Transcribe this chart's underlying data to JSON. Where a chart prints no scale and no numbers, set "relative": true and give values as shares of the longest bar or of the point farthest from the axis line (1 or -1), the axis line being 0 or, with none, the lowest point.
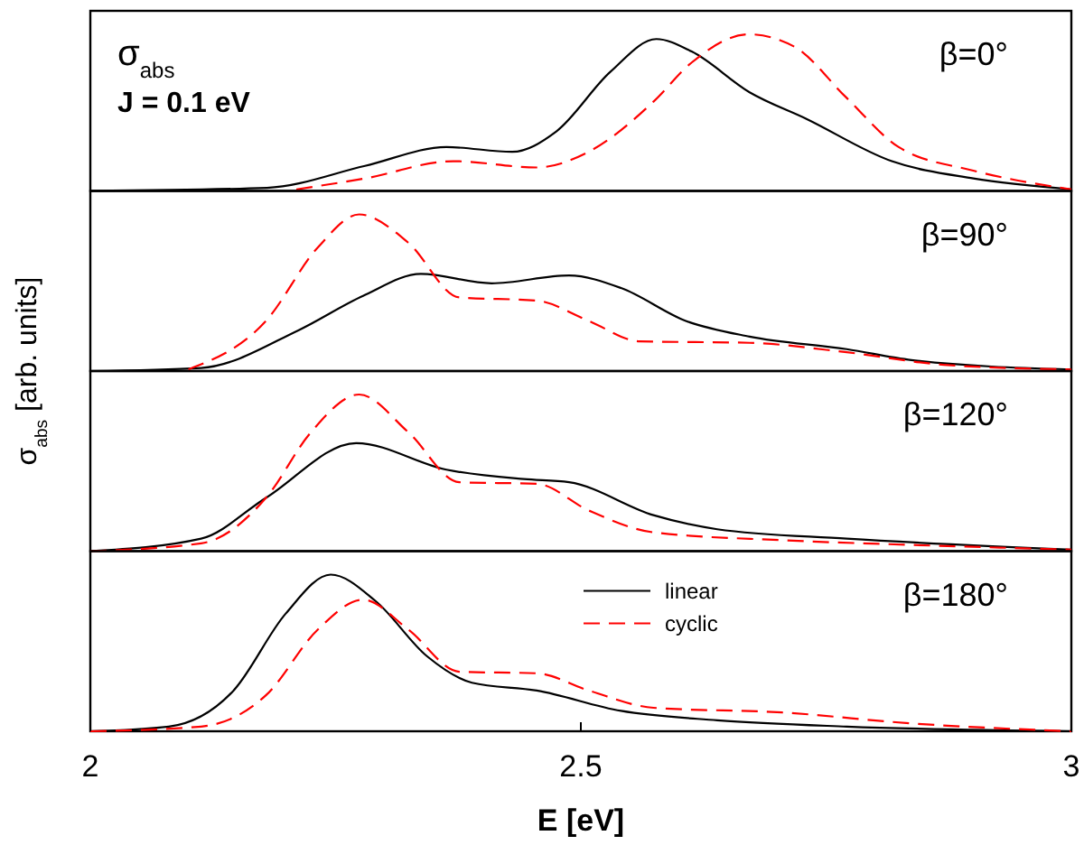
{
  "chart_data": [
    {
      "type": "line",
      "relative": true,
      "ylabel": "σ$_{abs}$ [arb. units]",
      "xlim": [
        2,
        3
      ],
      "tick_labels": false,
      "annotations": [
        "σ$_{abs}$",
        "J = 0.1 eV",
        "β=0°"
      ],
      "series": [
        {
          "color": "#000000",
          "line_style": "solid",
          "x": [
            2,
            2.18,
            2.28,
            2.363,
            2.43,
            2.475,
            2.53,
            2.577,
            2.613,
            2.672,
            2.73,
            2.817,
            2.9,
            3
          ],
          "values": [
            0,
            0.02,
            0.16,
            0.28,
            0.25,
            0.38,
            0.76,
            0.97,
            0.89,
            0.63,
            0.46,
            0.19,
            0.08,
            0.01
          ]
        },
        {
          "color": "#ff0000",
          "line_style": "dashed",
          "x": [
            2.21,
            2.28,
            2.37,
            2.455,
            2.508,
            2.574,
            2.613,
            2.671,
            2.718,
            2.77,
            2.824,
            2.9,
            3
          ],
          "values": [
            0.01,
            0.08,
            0.19,
            0.15,
            0.25,
            0.57,
            0.82,
            1,
            0.92,
            0.6,
            0.28,
            0.13,
            0.01
          ]
        }
      ]
    },
    {
      "type": "line",
      "relative": true,
      "xlim": [
        2,
        3
      ],
      "tick_labels": false,
      "annotations": [
        "β=90°"
      ],
      "series": [
        {
          "color": "#000000",
          "line_style": "solid",
          "x": [
            2,
            2.113,
            2.212,
            2.278,
            2.337,
            2.409,
            2.488,
            2.541,
            2.607,
            2.672,
            2.771,
            2.837,
            3
          ],
          "values": [
            0,
            0.02,
            0.26,
            0.48,
            0.62,
            0.56,
            0.61,
            0.53,
            0.32,
            0.22,
            0.14,
            0.07,
            0.01
          ]
        },
        {
          "color": "#ff0000",
          "line_style": "dashed",
          "x": [
            2.1,
            2.179,
            2.232,
            2.274,
            2.324,
            2.376,
            2.455,
            2.508,
            2.56,
            2.672,
            2.771,
            2.87,
            3
          ],
          "values": [
            0.01,
            0.32,
            0.79,
            1,
            0.82,
            0.47,
            0.45,
            0.32,
            0.19,
            0.18,
            0.12,
            0.04,
            0.01
          ]
        }
      ]
    },
    {
      "type": "line",
      "relative": true,
      "xlim": [
        2,
        3
      ],
      "tick_labels": false,
      "annotations": [
        "β=120°"
      ],
      "series": [
        {
          "color": "#000000",
          "line_style": "solid",
          "x": [
            2,
            2.113,
            2.179,
            2.271,
            2.363,
            2.442,
            2.488,
            2.574,
            2.639,
            2.771,
            3
          ],
          "values": [
            0,
            0.08,
            0.34,
            0.69,
            0.52,
            0.46,
            0.44,
            0.23,
            0.14,
            0.08,
            0.01
          ]
        },
        {
          "color": "#ff0000",
          "line_style": "dashed",
          "x": [
            2,
            2.113,
            2.179,
            2.225,
            2.274,
            2.324,
            2.376,
            2.455,
            2.508,
            2.574,
            2.705,
            2.837,
            3
          ],
          "values": [
            0,
            0.05,
            0.34,
            0.76,
            1,
            0.76,
            0.44,
            0.43,
            0.26,
            0.12,
            0.07,
            0.04,
            0.01
          ]
        }
      ]
    },
    {
      "type": "line",
      "relative": true,
      "xlabel": "E [eV]",
      "xlim": [
        2,
        3
      ],
      "xticks": [
        2,
        2.5,
        3
      ],
      "tick_labels": "x",
      "legend": "top",
      "annotations": [
        "β=180°"
      ],
      "series": [
        {
          "name": "linear",
          "color": "#000000",
          "line_style": "solid",
          "x": [
            2,
            2.08,
            2.146,
            2.199,
            2.245,
            2.291,
            2.343,
            2.389,
            2.455,
            2.541,
            2.639,
            2.771,
            3
          ],
          "values": [
            0,
            0.03,
            0.26,
            0.75,
            1,
            0.83,
            0.48,
            0.31,
            0.26,
            0.13,
            0.07,
            0.03,
            0
          ]
        },
        {
          "name": "cyclic",
          "color": "#ff0000",
          "line_style": "dashed",
          "x": [
            2,
            2.113,
            2.179,
            2.232,
            2.278,
            2.324,
            2.376,
            2.455,
            2.508,
            2.574,
            2.705,
            2.837,
            3
          ],
          "values": [
            0,
            0.03,
            0.23,
            0.65,
            0.84,
            0.65,
            0.38,
            0.37,
            0.26,
            0.15,
            0.12,
            0.05,
            0
          ]
        }
      ]
    }
  ]
}
